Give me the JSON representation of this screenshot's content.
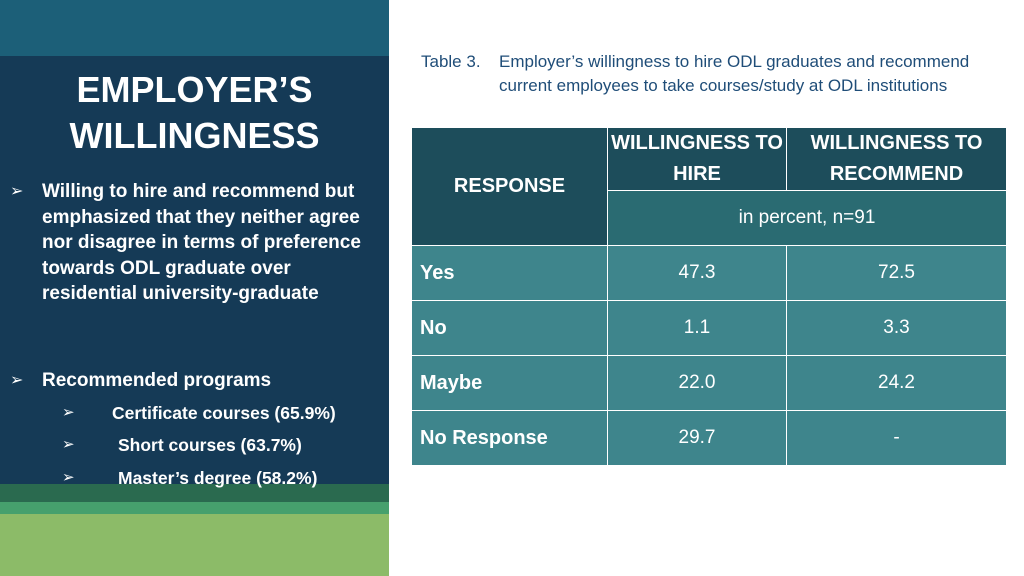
{
  "slide": {
    "title_line1": "EMPLOYER’S",
    "title_line2": "WILLINGNESS",
    "bullets": [
      {
        "arrow": "➢",
        "text": "Willing to hire and recommend but emphasized that they neither agree nor disagree in terms of preference towards ODL graduate over residential university-graduate"
      },
      {
        "arrow": "➢",
        "text": "Recommended programs",
        "subitems": [
          {
            "arrow": "➢",
            "text": "Certificate courses (65.9%)"
          },
          {
            "arrow": "➢",
            "text": "Short courses (63.7%)"
          },
          {
            "arrow": "➢",
            "text": "Master’s degree (58.2%)"
          }
        ]
      }
    ]
  },
  "table": {
    "caption_label": "Table 3.",
    "caption_text": "Employer’s willingness to hire ODL graduates and recommend current employees to take courses/study at ODL institutions",
    "response_header": "RESPONSE",
    "col1_header": "WILLINGNESS TO HIRE",
    "col2_header": "WILLINGNESS TO RECOMMEND",
    "units": "in percent, n=91",
    "rows": [
      {
        "label": "Yes",
        "hire": "47.3",
        "recommend": "72.5"
      },
      {
        "label": "No",
        "hire": "1.1",
        "recommend": "3.3"
      },
      {
        "label": "Maybe",
        "hire": "22.0",
        "recommend": "24.2"
      },
      {
        "label": "No Response",
        "hire": "29.7",
        "recommend": "-"
      }
    ]
  },
  "colors": {
    "left_panel": "#153a56",
    "top_band": "#1c5f78",
    "header_dark": "#1d4d5b",
    "header_mid": "#2a6b72",
    "row_teal": "#3e858c",
    "green_light": "#8cbb68",
    "caption_text": "#1f4d78"
  }
}
